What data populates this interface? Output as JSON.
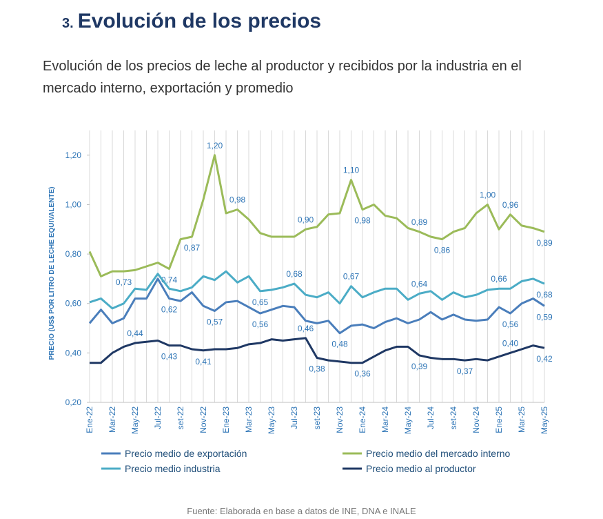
{
  "header": {
    "number": "3.",
    "title": "Evolución de los precios"
  },
  "subtitle": "Evolución de los precios de leche al productor y recibidos por la industria en el mercado interno, exportación y promedio",
  "chart_data": {
    "type": "line",
    "ylabel": "PRECIO (US$ POR LITRO DE LECHE EQUIVALENTE)",
    "categories": [
      "Ene-22",
      null,
      "Mar-22",
      null,
      "May-22",
      null,
      "Jul-22",
      null,
      "set-22",
      null,
      "Nov-22",
      null,
      "Ene-23",
      null,
      "Mar-23",
      null,
      "May-23",
      null,
      "Jul-23",
      null,
      "set-23",
      null,
      "Nov-23",
      null,
      "Ene-24",
      null,
      "Mar-24",
      null,
      "May-24",
      null,
      "Jul-24",
      null,
      "set-24",
      null,
      "Nov-24",
      null,
      "Ene-25",
      null,
      "Mar-25",
      null,
      "May-25"
    ],
    "ylim": [
      0.2,
      1.3
    ],
    "yticks": [
      {
        "value": 0.2,
        "label": "0,20"
      },
      {
        "value": 0.4,
        "label": "0,40"
      },
      {
        "value": 0.6,
        "label": "0,60"
      },
      {
        "value": 0.8,
        "label": "0,80"
      },
      {
        "value": 1.0,
        "label": "1,00"
      },
      {
        "value": 1.2,
        "label": "1,20"
      }
    ],
    "grid": true,
    "series": [
      {
        "name": "Precio medio de exportación",
        "color": "#4a7ebb",
        "values": [
          0.52,
          0.575,
          0.52,
          0.54,
          0.62,
          0.62,
          0.7,
          0.62,
          0.61,
          0.645,
          0.59,
          0.57,
          0.605,
          0.61,
          0.585,
          0.56,
          0.575,
          0.59,
          0.585,
          0.53,
          0.52,
          0.53,
          0.48,
          0.51,
          0.515,
          0.5,
          0.525,
          0.54,
          0.52,
          0.535,
          0.565,
          0.535,
          0.555,
          0.535,
          0.53,
          0.535,
          0.585,
          0.56,
          0.6,
          0.62,
          0.59
        ],
        "value_labels": [
          null,
          null,
          null,
          null,
          null,
          null,
          null,
          "0,62",
          null,
          null,
          null,
          "0,57",
          null,
          null,
          null,
          "0,56",
          null,
          null,
          null,
          null,
          null,
          null,
          "0,48",
          null,
          null,
          null,
          null,
          null,
          null,
          null,
          null,
          null,
          null,
          null,
          null,
          null,
          null,
          "0,56",
          null,
          null,
          "0,59"
        ]
      },
      {
        "name": "Precio medio del mercado interno",
        "color": "#9bbb59",
        "values": [
          0.81,
          0.71,
          0.73,
          0.73,
          0.735,
          0.75,
          0.765,
          0.74,
          0.86,
          0.87,
          1.02,
          1.2,
          0.965,
          0.98,
          0.94,
          0.885,
          0.87,
          0.87,
          0.87,
          0.9,
          0.91,
          0.96,
          0.965,
          1.1,
          0.98,
          1.0,
          0.955,
          0.945,
          0.905,
          0.89,
          0.87,
          0.86,
          0.89,
          0.905,
          0.965,
          1.0,
          0.9,
          0.96,
          0.915,
          0.905,
          0.89
        ],
        "value_labels": [
          null,
          null,
          null,
          "0,73",
          null,
          null,
          null,
          "0,74",
          null,
          "0,87",
          null,
          "1,20",
          null,
          "0,98",
          null,
          null,
          null,
          null,
          null,
          "0,90",
          null,
          null,
          null,
          "1,10",
          "0,98",
          null,
          null,
          null,
          null,
          "0,89",
          null,
          "0,86",
          null,
          null,
          null,
          "1,00",
          null,
          "0,96",
          null,
          null,
          "0,89"
        ]
      },
      {
        "name": "Precio medio industria",
        "color": "#4bacc6",
        "values": [
          0.605,
          0.62,
          0.58,
          0.6,
          0.66,
          0.655,
          0.72,
          0.66,
          0.65,
          0.665,
          0.71,
          0.695,
          0.73,
          0.685,
          0.71,
          0.65,
          0.655,
          0.665,
          0.68,
          0.635,
          0.625,
          0.645,
          0.6,
          0.67,
          0.625,
          0.645,
          0.66,
          0.66,
          0.615,
          0.64,
          0.65,
          0.615,
          0.645,
          0.625,
          0.635,
          0.655,
          0.66,
          0.66,
          0.69,
          0.7,
          0.68
        ],
        "value_labels": [
          null,
          null,
          null,
          null,
          null,
          null,
          null,
          null,
          null,
          null,
          null,
          null,
          null,
          null,
          null,
          "0,65",
          null,
          null,
          "0,68",
          null,
          null,
          null,
          null,
          "0,67",
          null,
          null,
          null,
          null,
          null,
          "0,64",
          null,
          null,
          null,
          null,
          null,
          null,
          "0,66",
          null,
          null,
          null,
          "0,68"
        ]
      },
      {
        "name": "Precio medio al productor",
        "color": "#1f3864",
        "values": [
          0.36,
          0.36,
          0.4,
          0.425,
          0.44,
          0.445,
          0.45,
          0.43,
          0.43,
          0.415,
          0.41,
          0.415,
          0.415,
          0.42,
          0.435,
          0.44,
          0.455,
          0.45,
          0.455,
          0.46,
          0.38,
          0.37,
          0.365,
          0.36,
          0.36,
          0.385,
          0.41,
          0.425,
          0.425,
          0.39,
          0.38,
          0.375,
          0.375,
          0.37,
          0.375,
          0.37,
          0.385,
          0.4,
          0.415,
          0.43,
          0.42
        ],
        "value_labels": [
          null,
          null,
          null,
          null,
          "0,44",
          null,
          null,
          "0,43",
          null,
          null,
          "0,41",
          null,
          null,
          null,
          null,
          null,
          null,
          null,
          null,
          "0,46",
          "0,38",
          null,
          null,
          null,
          "0,36",
          null,
          null,
          null,
          null,
          "0,39",
          null,
          null,
          null,
          "0,37",
          null,
          null,
          null,
          "0,40",
          null,
          null,
          "0,42"
        ]
      }
    ]
  },
  "source": "Fuente: Elaborada en base a datos de INE, DNA e INALE"
}
